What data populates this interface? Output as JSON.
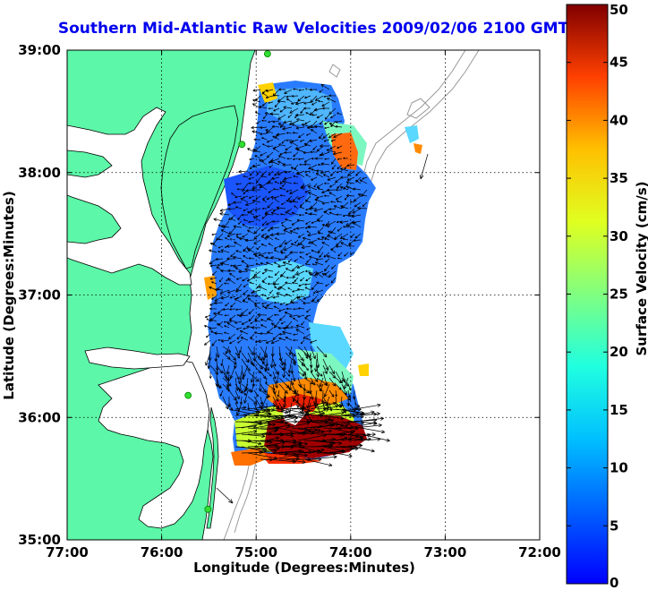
{
  "title": "Southern Mid-Atlantic Raw Velocities 2009/02/06 2100 GMT",
  "axes": {
    "xlabel": "Longitude (Degrees:Minutes)",
    "ylabel": "Latitude (Degrees:Minutes)",
    "x_ticks": [
      "77:00",
      "76:00",
      "75:00",
      "74:00",
      "73:00",
      "72:00"
    ],
    "y_ticks": [
      "39:00",
      "38:00",
      "37:00",
      "36:00",
      "35:00"
    ],
    "xlim": [
      -77,
      -72
    ],
    "ylim": [
      35,
      39
    ],
    "grid": "dotted"
  },
  "colorbar": {
    "label": "Surface Velocity (cm/s)",
    "ticks": [
      "50",
      "45",
      "40",
      "35",
      "30",
      "25",
      "20",
      "15",
      "10",
      "5",
      "0"
    ],
    "range": [
      0,
      50
    ],
    "colormap": "jet"
  },
  "colors": {
    "land": "#5cf7a8",
    "ocean": "#ffffff",
    "title": "#0000ee",
    "coast_outline": "#000000",
    "bathymetry": "#999999",
    "station": "#33dd33"
  },
  "stations": [
    {
      "lon": -74.88,
      "lat": 38.97
    },
    {
      "lon": -75.15,
      "lat": 38.23
    },
    {
      "lon": -75.72,
      "lat": 36.18
    },
    {
      "lon": -75.51,
      "lat": 35.25
    }
  ]
}
